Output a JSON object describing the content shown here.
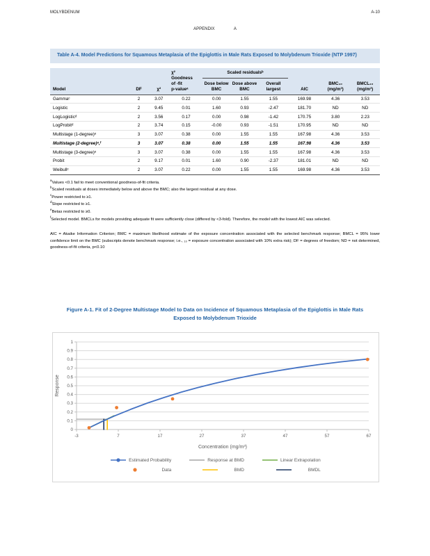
{
  "page": {
    "running_header_left": "MOLYBDENUM",
    "running_header_right": "A-10",
    "appendix_heading": "APPENDIX A"
  },
  "table": {
    "title": "Table A-4.  Model Predictions for Squamous Metaplasia of the Epiglottis in Male Rats Exposed to Molybdenum Trioxide (NTP 1997)",
    "header": {
      "model": "Model",
      "df": "DF",
      "chi_square": "χ²",
      "p_value": "χ²\nGoodness\nof -fit\np-valueᵃ",
      "scaled_residuals_group": "Scaled residualsᵇ",
      "dose_below": "Dose below BMC",
      "dose_above": "Dose above BMC",
      "overall_largest": "Overall largest",
      "aic": "AIC",
      "bmc": "BMC₁₀ (mg/m³)",
      "bmcl": "BMCL₁₀ (mg/m³)"
    },
    "rows": [
      {
        "model": "Gammaᶜ",
        "df": "2",
        "chi": "3.07",
        "p": "0.22",
        "below": "0.00",
        "above": "1.55",
        "largest": "1.55",
        "aic": "169.98",
        "bmc": "4.36",
        "bmcl": "3.53",
        "selected": false
      },
      {
        "model": "Logistic",
        "df": "2",
        "chi": "9.45",
        "p": "0.01",
        "below": "1.60",
        "above": "0.93",
        "largest": "-2.47",
        "aic": "181.70",
        "bmc": "ND",
        "bmcl": "ND",
        "selected": false
      },
      {
        "model": "LogLogisticᵈ",
        "df": "2",
        "chi": "3.56",
        "p": "0.17",
        "below": "0.00",
        "above": "0.98",
        "largest": "-1.42",
        "aic": "170.75",
        "bmc": "3.80",
        "bmcl": "2.23",
        "selected": false
      },
      {
        "model": "LogProbitᵈ",
        "df": "2",
        "chi": "3.74",
        "p": "0.15",
        "below": "-0.00",
        "above": "0.93",
        "largest": "-1.51",
        "aic": "170.95",
        "bmc": "ND",
        "bmcl": "ND",
        "selected": false
      },
      {
        "model": "Multistage (1-degree)ᵉ",
        "df": "3",
        "chi": "3.07",
        "p": "0.38",
        "below": "0.00",
        "above": "1.55",
        "largest": "1.55",
        "aic": "167.98",
        "bmc": "4.36",
        "bmcl": "3.53",
        "selected": false
      },
      {
        "model": "Multistage (2-degree)ᵉ,ᶠ",
        "df": "3",
        "chi": "3.07",
        "p": "0.38",
        "below": "0.00",
        "above": "1.55",
        "largest": "1.55",
        "aic": "167.98",
        "bmc": "4.36",
        "bmcl": "3.53",
        "selected": true
      },
      {
        "model": "Multistage (3-degree)ᵉ",
        "df": "3",
        "chi": "3.07",
        "p": "0.38",
        "below": "0.00",
        "above": "1.55",
        "largest": "1.55",
        "aic": "167.98",
        "bmc": "4.36",
        "bmcl": "3.53",
        "selected": false
      },
      {
        "model": "Probit",
        "df": "2",
        "chi": "9.17",
        "p": "0.01",
        "below": "1.60",
        "above": "0.90",
        "largest": "-2.37",
        "aic": "181.01",
        "bmc": "ND",
        "bmcl": "ND",
        "selected": false
      },
      {
        "model": "Weibullᶜ",
        "df": "2",
        "chi": "3.07",
        "p": "0.22",
        "below": "0.00",
        "above": "1.55",
        "largest": "1.55",
        "aic": "169.98",
        "bmc": "4.36",
        "bmcl": "3.53",
        "selected": false
      }
    ],
    "footnotes": [
      {
        "marker": "a",
        "text": "Values <0.1 fail to meet conventional goodness-of-fit criteria."
      },
      {
        "marker": "b",
        "text": "Scaled residuals at doses immediately below and above the BMC; also the largest residual at any dose."
      },
      {
        "marker": "c",
        "text": "Power restricted to ≥1."
      },
      {
        "marker": "d",
        "text": "Slope restricted to ≥1."
      },
      {
        "marker": "e",
        "text": "Betas restricted to ≥0."
      },
      {
        "marker": "f",
        "text": "Selected model. BMCLs for models providing adequate fit were sufficiently close (differed by <3-fold). Therefore, the model with the lowest AIC was selected."
      }
    ],
    "abbreviations": "AIC = Akaike Information Criterion; BMC = maximum likelihood estimate of the exposure concentration associated with the selected benchmark response; BMCL = 95% lower confidence limit on the BMC (subscripts denote benchmark response; i.e., ₁₀ = exposure concentration associated with 10% extra risk); DF = degrees of freedom; ND = not determined, goodness-of-fit criteria, p<0.10"
  },
  "figure": {
    "caption": "Figure A-1.  Fit of 2-Degree Multistage Model to Data on Incidence of Squamous Metaplasia of the Epiglottis in Male Rats Exposed to Molybdenum Trioxide"
  },
  "chart_data": {
    "type": "line",
    "title": "",
    "xlabel": "Concentration (mg/m³)",
    "ylabel": "Response",
    "xlim": [
      -3,
      67
    ],
    "ylim": [
      0,
      1
    ],
    "x_ticks": [
      -3,
      7,
      17,
      27,
      37,
      47,
      57,
      67
    ],
    "y_tick_step": 0.1,
    "grid": "horizontal",
    "legend_position": "bottom",
    "bmd": 4.36,
    "bmdl": 3.53,
    "bmr_response": 0.118,
    "series": [
      {
        "name": "Response at BMD",
        "color": "#a6a6a6",
        "kind": "line",
        "width": 1.2,
        "points": [
          [
            -3,
            0.118
          ],
          [
            4.36,
            0.118
          ]
        ]
      },
      {
        "name": "Linear Extrapolation",
        "color": "#70ad47",
        "kind": "line",
        "width": 1.6,
        "points": [
          [
            0,
            0.02
          ],
          [
            6,
            0.158
          ]
        ]
      },
      {
        "name": "BMD",
        "color": "#ffc000",
        "kind": "line",
        "width": 1.6,
        "points": [
          [
            4.36,
            0
          ],
          [
            4.36,
            0.118
          ]
        ]
      },
      {
        "name": "BMDL",
        "color": "#1f3864",
        "kind": "line",
        "width": 1.6,
        "points": [
          [
            3.53,
            0
          ],
          [
            3.53,
            0.118
          ]
        ]
      },
      {
        "name": "Estimated Probability",
        "color": "#4472c4",
        "kind": "line",
        "width": 1.8,
        "points": [
          [
            0,
            0.02
          ],
          [
            3,
            0.089
          ],
          [
            6,
            0.153
          ],
          [
            10,
            0.231
          ],
          [
            14,
            0.302
          ],
          [
            18,
            0.366
          ],
          [
            22,
            0.425
          ],
          [
            26,
            0.478
          ],
          [
            30,
            0.526
          ],
          [
            35,
            0.58
          ],
          [
            40,
            0.628
          ],
          [
            45,
            0.67
          ],
          [
            50,
            0.708
          ],
          [
            55,
            0.741
          ],
          [
            60,
            0.771
          ],
          [
            67,
            0.806
          ]
        ]
      },
      {
        "name": "Data",
        "color": "#ed7d31",
        "kind": "scatter",
        "points": [
          [
            0,
            0.02
          ],
          [
            6.6,
            0.25
          ],
          [
            20,
            0.35
          ],
          [
            66.7,
            0.8
          ]
        ]
      }
    ],
    "legend": [
      {
        "label": "Estimated Probability",
        "color": "#4472c4",
        "marker": "line-dot"
      },
      {
        "label": "Response at BMD",
        "color": "#a6a6a6",
        "marker": "line"
      },
      {
        "label": "Linear Extrapolation",
        "color": "#70ad47",
        "marker": "line"
      },
      {
        "label": "Data",
        "color": "#ed7d31",
        "marker": "dot"
      },
      {
        "label": "BMD",
        "color": "#ffc000",
        "marker": "line"
      },
      {
        "label": "BMDL",
        "color": "#1f3864",
        "marker": "line"
      }
    ]
  }
}
